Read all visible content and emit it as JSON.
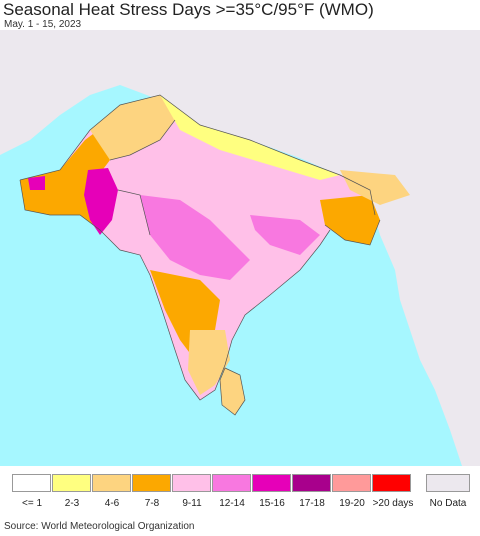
{
  "title": "Seasonal Heat Stress Days >=35°C/95°F (WMO)",
  "subtitle": "May. 1 - 15, 2023",
  "source": "Source: World Meteorological Organization",
  "legend": [
    {
      "label": "<= 1",
      "color": "#ffffff"
    },
    {
      "label": "2-3",
      "color": "#ffff80"
    },
    {
      "label": "4-6",
      "color": "#fdd480"
    },
    {
      "label": "7-8",
      "color": "#fca800"
    },
    {
      "label": "9-11",
      "color": "#ffc0e8"
    },
    {
      "label": "12-14",
      "color": "#f878e0"
    },
    {
      "label": "15-16",
      "color": "#e600b8"
    },
    {
      "label": "17-18",
      "color": "#a8008c"
    },
    {
      "label": "19-20",
      "color": "#ff9a9a"
    },
    {
      "label": ">20 days",
      "color": "#ff0000"
    }
  ],
  "no_data": {
    "label": "No Data",
    "color": "#ece8ee"
  },
  "colors": {
    "ocean": "#a6f7ff",
    "no_data_land": "#ece8ee",
    "border": "#555555"
  }
}
